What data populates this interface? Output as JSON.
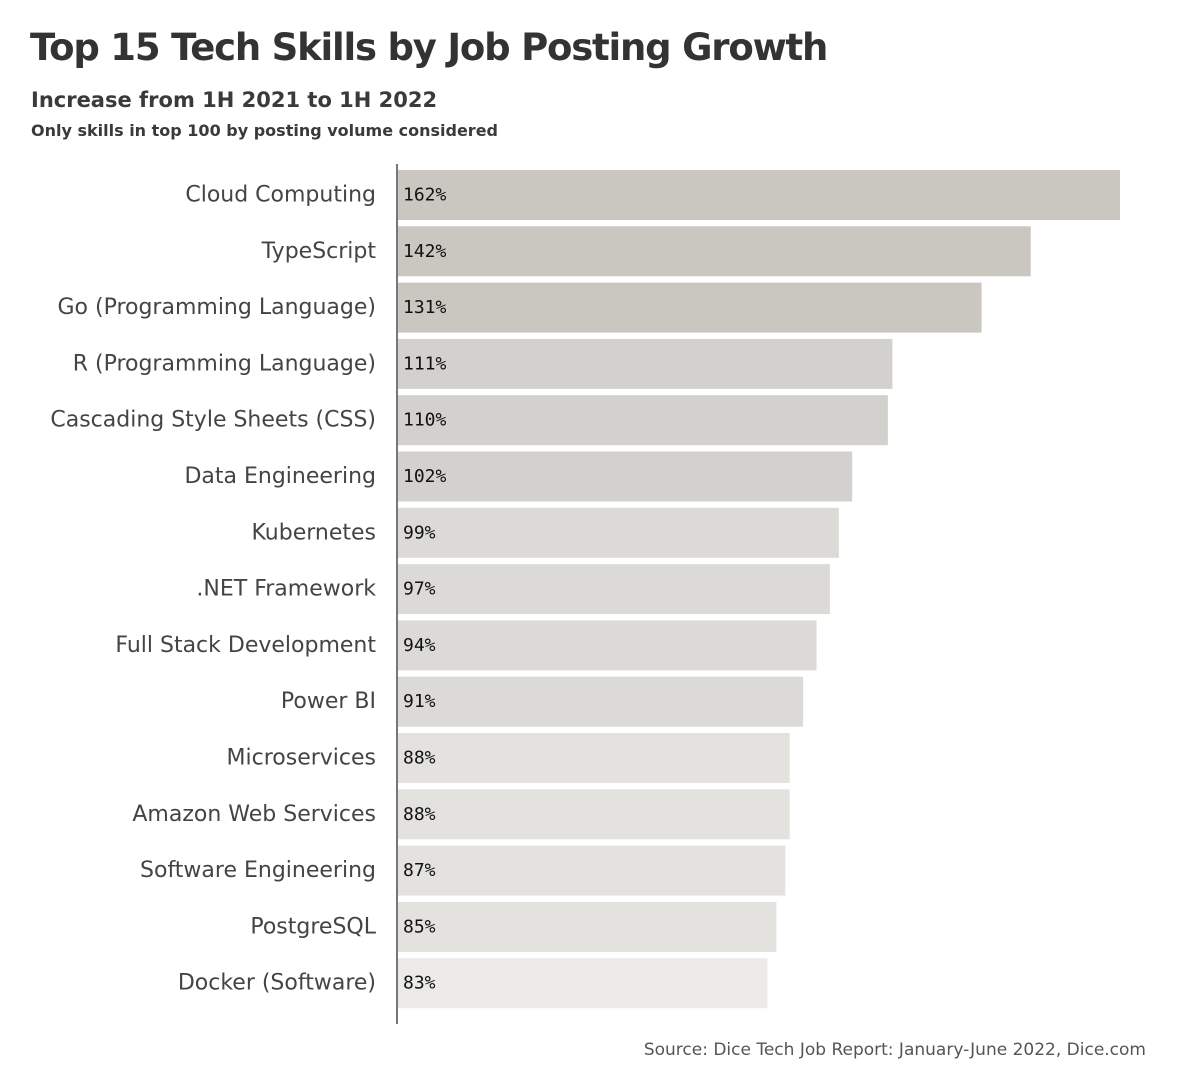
{
  "header": {
    "title": "Top 15 Tech Skills by Job Posting Growth",
    "subtitle": "Increase from 1H 2021 to 1H 2022",
    "note": "Only skills in top 100 by posting volume considered"
  },
  "footer": {
    "source": "Source: Dice Tech Job Report: January-June 2022, Dice.com"
  },
  "colors": {
    "bars": [
      "#cac6c0",
      "#cac6c0",
      "#cac6c0",
      "#d3d1cd",
      "#d3d1cd",
      "#d3d1cd",
      "#dbdad7",
      "#dbdad7",
      "#dbdad7",
      "#dbdad7",
      "#e3e2df",
      "#e3e2df",
      "#e3e2df",
      "#e3e2df",
      "#ebeae9"
    ],
    "axis": "#777777"
  },
  "chart_data": {
    "type": "bar",
    "orientation": "horizontal",
    "categories": [
      "Cloud Computing",
      "TypeScript",
      "Go (Programming Language)",
      "R (Programming Language)",
      "Cascading Style Sheets (CSS)",
      "Data Engineering",
      "Kubernetes",
      ".NET Framework",
      "Full Stack Development",
      "Power BI",
      "Microservices",
      "Amazon Web Services",
      "Software Engineering",
      "PostgreSQL",
      "Docker (Software)"
    ],
    "values": [
      162,
      142,
      131,
      111,
      110,
      102,
      99,
      97,
      94,
      91,
      88,
      88,
      87,
      85,
      83
    ],
    "value_labels": [
      "162%",
      "142%",
      "131%",
      "111%",
      "110%",
      "102%",
      "99%",
      "97%",
      "94%",
      "91%",
      "88%",
      "88%",
      "87%",
      "85%",
      "83%"
    ],
    "title": "Top 15 Tech Skills by Job Posting Growth",
    "subtitle": "Increase from 1H 2021 to 1H 2022",
    "xlabel": "",
    "ylabel": "",
    "grid": false,
    "legend": "none"
  }
}
